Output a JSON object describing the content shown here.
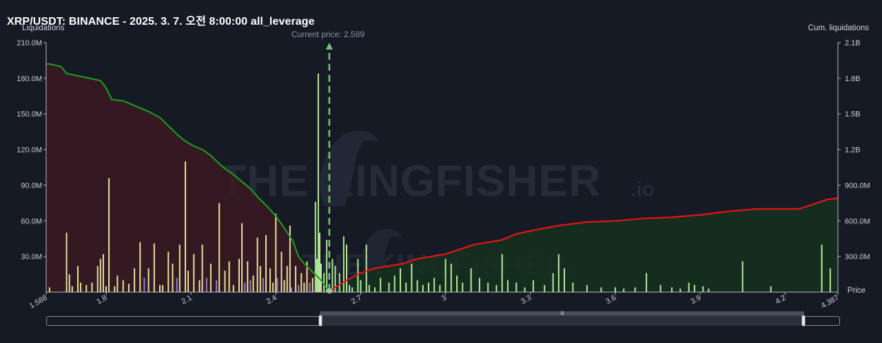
{
  "title": "XRP/USDT: BINANCE - 2025. 3. 7. 오전 8:00:00 all_leverage",
  "watermark": {
    "text": "THE KINGFISHER",
    "suffix": ".io"
  },
  "current_price_label": "Current price: 2.589",
  "colors": {
    "background": "#161a25",
    "long_area": "#3a1a22",
    "short_area": "#15301f",
    "long_cum_line": "#1aa31a",
    "short_cum_line": "#e81414",
    "bar_yellow": "#e8e29a",
    "bar_green": "#b5ec9a",
    "bar_purple": "#8b86c9",
    "current_price_line": "#7fbf7f"
  },
  "chart_data": {
    "type": "bar",
    "title": "XRP/USDT: BINANCE - 2025. 3. 7. 오전 8:00:00 all_leverage",
    "xlabel": "Price",
    "ylabel": "Liquidations",
    "ylabel_right": "Cum. liquidations",
    "xlim": [
      1.588,
      4.387
    ],
    "ylim": [
      0,
      210000000
    ],
    "ylim_right": [
      0,
      2100000000
    ],
    "x_ticks": [
      "1.588",
      "1.8",
      "2.1",
      "2.4",
      "2.7",
      "3",
      "3.3",
      "3.6",
      "3.9",
      "4.2",
      "4.387"
    ],
    "x_tick_values": [
      1.588,
      1.8,
      2.1,
      2.4,
      2.7,
      3.0,
      3.3,
      3.6,
      3.9,
      4.2,
      4.387
    ],
    "y_ticks_left": [
      "30.0M",
      "60.0M",
      "90.0M",
      "120.0M",
      "150.0M",
      "180.0M",
      "210.0M"
    ],
    "y_ticks_right": [
      "300.0M",
      "600.0M",
      "900.0M",
      "1.2B",
      "1.5B",
      "1.8B",
      "2.1B"
    ],
    "current_price": 2.589,
    "legend": "none",
    "grid": false,
    "bars": [
      {
        "x": 1.6,
        "v": 4000000,
        "c": "y"
      },
      {
        "x": 1.66,
        "v": 50000000,
        "c": "y"
      },
      {
        "x": 1.67,
        "v": 15000000,
        "c": "y"
      },
      {
        "x": 1.68,
        "v": 5000000,
        "c": "y"
      },
      {
        "x": 1.7,
        "v": 22000000,
        "c": "y"
      },
      {
        "x": 1.71,
        "v": 8000000,
        "c": "y"
      },
      {
        "x": 1.73,
        "v": 6000000,
        "c": "y"
      },
      {
        "x": 1.75,
        "v": 8000000,
        "c": "y"
      },
      {
        "x": 1.77,
        "v": 22000000,
        "c": "y"
      },
      {
        "x": 1.78,
        "v": 28000000,
        "c": "y"
      },
      {
        "x": 1.79,
        "v": 32000000,
        "c": "y"
      },
      {
        "x": 1.8,
        "v": 5000000,
        "c": "y"
      },
      {
        "x": 1.81,
        "v": 96000000,
        "c": "y"
      },
      {
        "x": 1.83,
        "v": 5000000,
        "c": "y"
      },
      {
        "x": 1.84,
        "v": 14000000,
        "c": "y"
      },
      {
        "x": 1.86,
        "v": 10000000,
        "c": "y"
      },
      {
        "x": 1.88,
        "v": 7000000,
        "c": "y"
      },
      {
        "x": 1.9,
        "v": 20000000,
        "c": "y"
      },
      {
        "x": 1.92,
        "v": 42000000,
        "c": "y"
      },
      {
        "x": 1.935,
        "v": 12000000,
        "c": "p"
      },
      {
        "x": 1.95,
        "v": 20000000,
        "c": "y"
      },
      {
        "x": 1.97,
        "v": 41000000,
        "c": "y"
      },
      {
        "x": 1.99,
        "v": 6000000,
        "c": "y"
      },
      {
        "x": 2.0,
        "v": 6000000,
        "c": "y"
      },
      {
        "x": 2.02,
        "v": 34000000,
        "c": "y"
      },
      {
        "x": 2.035,
        "v": 24000000,
        "c": "y"
      },
      {
        "x": 2.05,
        "v": 12000000,
        "c": "p"
      },
      {
        "x": 2.06,
        "v": 40000000,
        "c": "y"
      },
      {
        "x": 2.08,
        "v": 110000000,
        "c": "y"
      },
      {
        "x": 2.09,
        "v": 18000000,
        "c": "y"
      },
      {
        "x": 2.11,
        "v": 32000000,
        "c": "y"
      },
      {
        "x": 2.13,
        "v": 10000000,
        "c": "y"
      },
      {
        "x": 2.14,
        "v": 40000000,
        "c": "y"
      },
      {
        "x": 2.155,
        "v": 12000000,
        "c": "p"
      },
      {
        "x": 2.17,
        "v": 24000000,
        "c": "y"
      },
      {
        "x": 2.19,
        "v": 10000000,
        "c": "p"
      },
      {
        "x": 2.2,
        "v": 75000000,
        "c": "y"
      },
      {
        "x": 2.22,
        "v": 18000000,
        "c": "y"
      },
      {
        "x": 2.235,
        "v": 26000000,
        "c": "y"
      },
      {
        "x": 2.25,
        "v": 6000000,
        "c": "y"
      },
      {
        "x": 2.27,
        "v": 28000000,
        "c": "y"
      },
      {
        "x": 2.28,
        "v": 58000000,
        "c": "y"
      },
      {
        "x": 2.29,
        "v": 8000000,
        "c": "p"
      },
      {
        "x": 2.3,
        "v": 26000000,
        "c": "y"
      },
      {
        "x": 2.31,
        "v": 10000000,
        "c": "p"
      },
      {
        "x": 2.32,
        "v": 14000000,
        "c": "y"
      },
      {
        "x": 2.335,
        "v": 46000000,
        "c": "y"
      },
      {
        "x": 2.345,
        "v": 22000000,
        "c": "y"
      },
      {
        "x": 2.355,
        "v": 12000000,
        "c": "p"
      },
      {
        "x": 2.365,
        "v": 48000000,
        "c": "y"
      },
      {
        "x": 2.38,
        "v": 20000000,
        "c": "y"
      },
      {
        "x": 2.39,
        "v": 8000000,
        "c": "y"
      },
      {
        "x": 2.4,
        "v": 66000000,
        "c": "y"
      },
      {
        "x": 2.405,
        "v": 12000000,
        "c": "p"
      },
      {
        "x": 2.42,
        "v": 34000000,
        "c": "y"
      },
      {
        "x": 2.43,
        "v": 10000000,
        "c": "y"
      },
      {
        "x": 2.44,
        "v": 22000000,
        "c": "y"
      },
      {
        "x": 2.45,
        "v": 56000000,
        "c": "y"
      },
      {
        "x": 2.455,
        "v": 4000000,
        "c": "p"
      },
      {
        "x": 2.47,
        "v": 22000000,
        "c": "y"
      },
      {
        "x": 2.48,
        "v": 6000000,
        "c": "p"
      },
      {
        "x": 2.49,
        "v": 16000000,
        "c": "y"
      },
      {
        "x": 2.5,
        "v": 8000000,
        "c": "y"
      },
      {
        "x": 2.51,
        "v": 26000000,
        "c": "y"
      },
      {
        "x": 2.52,
        "v": 8000000,
        "c": "p"
      },
      {
        "x": 2.53,
        "v": 12000000,
        "c": "y"
      },
      {
        "x": 2.54,
        "v": 76000000,
        "c": "g"
      },
      {
        "x": 2.545,
        "v": 28000000,
        "c": "g"
      },
      {
        "x": 2.55,
        "v": 184000000,
        "c": "g"
      },
      {
        "x": 2.555,
        "v": 50000000,
        "c": "g"
      },
      {
        "x": 2.56,
        "v": 24000000,
        "c": "g"
      },
      {
        "x": 2.57,
        "v": 16000000,
        "c": "g"
      },
      {
        "x": 2.58,
        "v": 44000000,
        "c": "g"
      },
      {
        "x": 2.6,
        "v": 28000000,
        "c": "g"
      },
      {
        "x": 2.61,
        "v": 22000000,
        "c": "g"
      },
      {
        "x": 2.625,
        "v": 16000000,
        "c": "g"
      },
      {
        "x": 2.64,
        "v": 47000000,
        "c": "g"
      },
      {
        "x": 2.65,
        "v": 40000000,
        "c": "g"
      },
      {
        "x": 2.66,
        "v": 6000000,
        "c": "g"
      },
      {
        "x": 2.67,
        "v": 4000000,
        "c": "g"
      },
      {
        "x": 2.69,
        "v": 28000000,
        "c": "g"
      },
      {
        "x": 2.7,
        "v": 10000000,
        "c": "g"
      },
      {
        "x": 2.72,
        "v": 40000000,
        "c": "g"
      },
      {
        "x": 2.73,
        "v": 6000000,
        "c": "g"
      },
      {
        "x": 2.75,
        "v": 4000000,
        "c": "g"
      },
      {
        "x": 2.77,
        "v": 12000000,
        "c": "g"
      },
      {
        "x": 2.8,
        "v": 8000000,
        "c": "g"
      },
      {
        "x": 2.82,
        "v": 14000000,
        "c": "g"
      },
      {
        "x": 2.84,
        "v": 20000000,
        "c": "g"
      },
      {
        "x": 2.86,
        "v": 8000000,
        "c": "g"
      },
      {
        "x": 2.88,
        "v": 24000000,
        "c": "g"
      },
      {
        "x": 2.9,
        "v": 10000000,
        "c": "g"
      },
      {
        "x": 2.92,
        "v": 6000000,
        "c": "g"
      },
      {
        "x": 2.94,
        "v": 8000000,
        "c": "g"
      },
      {
        "x": 2.96,
        "v": 12000000,
        "c": "g"
      },
      {
        "x": 2.98,
        "v": 6000000,
        "c": "g"
      },
      {
        "x": 3.0,
        "v": 28000000,
        "c": "g"
      },
      {
        "x": 3.02,
        "v": 24000000,
        "c": "g"
      },
      {
        "x": 3.04,
        "v": 14000000,
        "c": "g"
      },
      {
        "x": 3.06,
        "v": 8000000,
        "c": "g"
      },
      {
        "x": 3.09,
        "v": 20000000,
        "c": "g"
      },
      {
        "x": 3.12,
        "v": 12000000,
        "c": "g"
      },
      {
        "x": 3.15,
        "v": 8000000,
        "c": "g"
      },
      {
        "x": 3.18,
        "v": 6000000,
        "c": "g"
      },
      {
        "x": 3.2,
        "v": 32000000,
        "c": "g"
      },
      {
        "x": 3.22,
        "v": 10000000,
        "c": "g"
      },
      {
        "x": 3.25,
        "v": 8000000,
        "c": "g"
      },
      {
        "x": 3.28,
        "v": 4000000,
        "c": "g"
      },
      {
        "x": 3.31,
        "v": 10000000,
        "c": "g"
      },
      {
        "x": 3.35,
        "v": 6000000,
        "c": "g"
      },
      {
        "x": 3.38,
        "v": 16000000,
        "c": "g"
      },
      {
        "x": 3.4,
        "v": 32000000,
        "c": "g"
      },
      {
        "x": 3.42,
        "v": 20000000,
        "c": "g"
      },
      {
        "x": 3.45,
        "v": 8000000,
        "c": "g"
      },
      {
        "x": 3.5,
        "v": 6000000,
        "c": "g"
      },
      {
        "x": 3.55,
        "v": 4000000,
        "c": "g"
      },
      {
        "x": 3.6,
        "v": 4000000,
        "c": "g"
      },
      {
        "x": 3.63,
        "v": 3000000,
        "c": "g"
      },
      {
        "x": 3.67,
        "v": 4000000,
        "c": "g"
      },
      {
        "x": 3.71,
        "v": 16000000,
        "c": "g"
      },
      {
        "x": 3.76,
        "v": 6000000,
        "c": "g"
      },
      {
        "x": 3.8,
        "v": 4000000,
        "c": "g"
      },
      {
        "x": 3.83,
        "v": 3000000,
        "c": "g"
      },
      {
        "x": 3.86,
        "v": 8000000,
        "c": "g"
      },
      {
        "x": 3.88,
        "v": 6000000,
        "c": "g"
      },
      {
        "x": 3.91,
        "v": 5000000,
        "c": "g"
      },
      {
        "x": 3.93,
        "v": 3000000,
        "c": "g"
      },
      {
        "x": 4.05,
        "v": 26000000,
        "c": "g"
      },
      {
        "x": 4.15,
        "v": 5000000,
        "c": "g"
      },
      {
        "x": 4.33,
        "v": 40000000,
        "c": "g"
      },
      {
        "x": 4.36,
        "v": 20000000,
        "c": "g"
      }
    ],
    "series": [
      {
        "values_axis": "right",
        "points": [
          [
            1.588,
            1920000000
          ],
          [
            1.6,
            1920000000
          ],
          [
            1.64,
            1900000000
          ],
          [
            1.66,
            1840000000
          ],
          [
            1.72,
            1810000000
          ],
          [
            1.78,
            1780000000
          ],
          [
            1.8,
            1720000000
          ],
          [
            1.82,
            1620000000
          ],
          [
            1.86,
            1610000000
          ],
          [
            1.91,
            1560000000
          ],
          [
            1.95,
            1520000000
          ],
          [
            1.99,
            1470000000
          ],
          [
            2.02,
            1400000000
          ],
          [
            2.05,
            1330000000
          ],
          [
            2.08,
            1270000000
          ],
          [
            2.11,
            1230000000
          ],
          [
            2.14,
            1200000000
          ],
          [
            2.17,
            1150000000
          ],
          [
            2.2,
            1080000000
          ],
          [
            2.22,
            1040000000
          ],
          [
            2.25,
            990000000
          ],
          [
            2.28,
            930000000
          ],
          [
            2.31,
            870000000
          ],
          [
            2.34,
            790000000
          ],
          [
            2.37,
            720000000
          ],
          [
            2.4,
            640000000
          ],
          [
            2.43,
            540000000
          ],
          [
            2.46,
            430000000
          ],
          [
            2.48,
            300000000
          ],
          [
            2.5,
            240000000
          ],
          [
            2.53,
            170000000
          ],
          [
            2.56,
            100000000
          ],
          [
            2.58,
            30000000
          ],
          [
            2.589,
            0
          ]
        ]
      },
      {
        "values_axis": "right",
        "points": [
          [
            2.589,
            0
          ],
          [
            2.61,
            40000000
          ],
          [
            2.65,
            100000000
          ],
          [
            2.7,
            160000000
          ],
          [
            2.75,
            200000000
          ],
          [
            2.85,
            240000000
          ],
          [
            2.9,
            280000000
          ],
          [
            3.0,
            320000000
          ],
          [
            3.05,
            360000000
          ],
          [
            3.1,
            400000000
          ],
          [
            3.2,
            440000000
          ],
          [
            3.25,
            490000000
          ],
          [
            3.33,
            530000000
          ],
          [
            3.4,
            560000000
          ],
          [
            3.5,
            590000000
          ],
          [
            3.6,
            600000000
          ],
          [
            3.7,
            620000000
          ],
          [
            3.8,
            630000000
          ],
          [
            3.9,
            650000000
          ],
          [
            4.0,
            680000000
          ],
          [
            4.1,
            700000000
          ],
          [
            4.25,
            700000000
          ],
          [
            4.3,
            740000000
          ],
          [
            4.35,
            780000000
          ],
          [
            4.387,
            790000000
          ]
        ]
      }
    ]
  }
}
